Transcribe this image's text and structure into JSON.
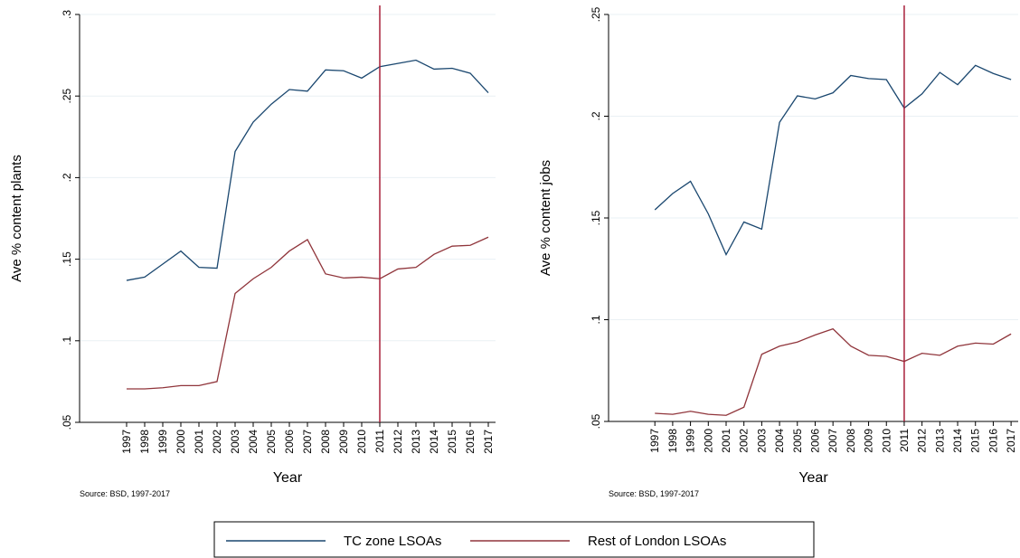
{
  "chart_data": [
    {
      "type": "line",
      "y_label": "Ave % content plants",
      "x_label": "Year",
      "note": "Source: BSD, 1997-2017",
      "x": [
        1997,
        1998,
        1999,
        2000,
        2001,
        2002,
        2003,
        2004,
        2005,
        2006,
        2007,
        2008,
        2009,
        2010,
        2011,
        2012,
        2013,
        2014,
        2015,
        2016,
        2017
      ],
      "xlim": [
        1994.4,
        2017.4
      ],
      "xticks": [
        1997,
        1998,
        1999,
        2000,
        2001,
        2002,
        2003,
        2004,
        2005,
        2006,
        2007,
        2008,
        2009,
        2010,
        2011,
        2012,
        2013,
        2014,
        2015,
        2016,
        2017
      ],
      "ylim": [
        0.05,
        0.3
      ],
      "yticks": [
        {
          "value": 0.05,
          "label": ".05"
        },
        {
          "value": 0.1,
          "label": ".1"
        },
        {
          "value": 0.15,
          "label": ".15"
        },
        {
          "value": 0.2,
          "label": ".2"
        },
        {
          "value": 0.25,
          "label": ".25"
        },
        {
          "value": 0.3,
          "label": ".3"
        }
      ],
      "grid": true,
      "vline": 2011,
      "vline_color": "#a8203a",
      "series": [
        {
          "name": "TC zone LSOAs",
          "color": "#1a476f",
          "values": [
            0.137,
            0.139,
            0.147,
            0.155,
            0.145,
            0.1445,
            0.216,
            0.234,
            0.245,
            0.254,
            0.253,
            0.266,
            0.2655,
            0.261,
            0.268,
            0.27,
            0.272,
            0.2665,
            0.267,
            0.264,
            0.252
          ]
        },
        {
          "name": "Rest of London LSOAs",
          "color": "#90353b",
          "values": [
            0.0705,
            0.0705,
            0.0712,
            0.0725,
            0.0725,
            0.075,
            0.129,
            0.138,
            0.145,
            0.155,
            0.162,
            0.141,
            0.1385,
            0.139,
            0.138,
            0.144,
            0.145,
            0.153,
            0.158,
            0.1585,
            0.1635
          ]
        }
      ]
    },
    {
      "type": "line",
      "y_label": "Ave % content jobs",
      "x_label": "Year",
      "note": "Source: BSD, 1997-2017",
      "x": [
        1997,
        1998,
        1999,
        2000,
        2001,
        2002,
        2003,
        2004,
        2005,
        2006,
        2007,
        2008,
        2009,
        2010,
        2011,
        2012,
        2013,
        2014,
        2015,
        2016,
        2017
      ],
      "xlim": [
        1994.4,
        2017.4
      ],
      "xticks": [
        1997,
        1998,
        1999,
        2000,
        2001,
        2002,
        2003,
        2004,
        2005,
        2006,
        2007,
        2008,
        2009,
        2010,
        2011,
        2012,
        2013,
        2014,
        2015,
        2016,
        2017
      ],
      "ylim": [
        0.05,
        0.25
      ],
      "yticks": [
        {
          "value": 0.05,
          "label": ".05"
        },
        {
          "value": 0.1,
          "label": ".1"
        },
        {
          "value": 0.15,
          "label": ".15"
        },
        {
          "value": 0.2,
          "label": ".2"
        },
        {
          "value": 0.25,
          "label": ".25"
        }
      ],
      "grid": true,
      "vline": 2011,
      "vline_color": "#a8203a",
      "series": [
        {
          "color": "#1a476f",
          "values": [
            0.154,
            0.162,
            0.168,
            0.152,
            0.132,
            0.148,
            0.1445,
            0.197,
            0.21,
            0.2085,
            0.2115,
            0.22,
            0.2185,
            0.218,
            0.204,
            0.211,
            0.2215,
            0.2155,
            0.225,
            0.221,
            0.218
          ]
        },
        {
          "color": "#90353b",
          "values": [
            0.054,
            0.0535,
            0.055,
            0.0535,
            0.053,
            0.057,
            0.083,
            0.087,
            0.089,
            0.0925,
            0.0955,
            0.087,
            0.0825,
            0.082,
            0.0795,
            0.0835,
            0.0825,
            0.087,
            0.0885,
            0.088,
            0.093
          ]
        }
      ]
    }
  ]
}
